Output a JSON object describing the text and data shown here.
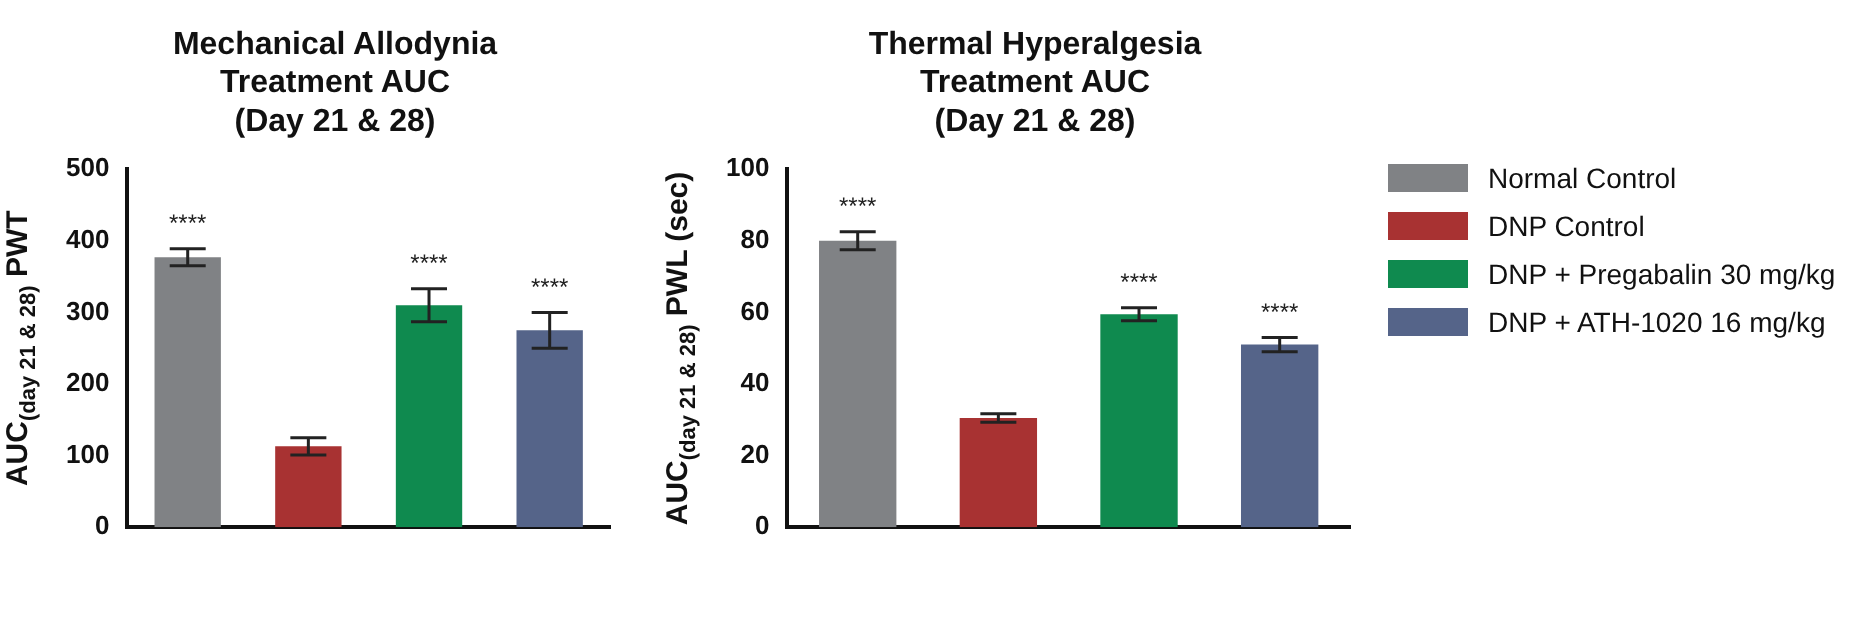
{
  "chart_data": [
    {
      "type": "bar",
      "title": "Mechanical Allodynia\nTreatment AUC\n(Day 21 & 28)",
      "ylabel": "AUC$_{(day 21 & 28)}$ PWT",
      "categories": [
        null
      ],
      "ylim": [
        0,
        500
      ],
      "yticks": [
        0,
        100,
        200,
        300,
        400,
        500
      ],
      "grid": false,
      "legend": false,
      "series": [
        {
          "color": "#808285",
          "values": [
            377
          ],
          "errors": [
            12
          ],
          "value_labels": [
            "****"
          ]
        },
        {
          "color": "#a83232",
          "values": [
            113
          ],
          "errors": [
            12
          ],
          "value_labels": [
            null
          ]
        },
        {
          "color": "#0f8a4f",
          "values": [
            310
          ],
          "errors": [
            23
          ],
          "value_labels": [
            "****"
          ]
        },
        {
          "color": "#556489",
          "values": [
            275
          ],
          "errors": [
            25
          ],
          "value_labels": [
            "****"
          ]
        }
      ]
    },
    {
      "type": "bar",
      "title": "Thermal Hyperalgesia\nTreatment AUC\n(Day 21 & 28)",
      "ylabel": "AUC$_{(day 21 & 28)}$ PWL (sec)",
      "categories": [
        null
      ],
      "ylim": [
        0,
        100
      ],
      "yticks": [
        0,
        20,
        40,
        60,
        80,
        100
      ],
      "grid": false,
      "legend": "right",
      "series": [
        {
          "name": "Normal Control",
          "color": "#808285",
          "values": [
            80
          ],
          "errors": [
            2.5
          ],
          "value_labels": [
            "****"
          ]
        },
        {
          "name": "DNP Control",
          "color": "#a83232",
          "values": [
            30.5
          ],
          "errors": [
            1.2
          ],
          "value_labels": [
            null
          ]
        },
        {
          "name": "DNP + Pregabalin 30 mg/kg",
          "color": "#0f8a4f",
          "values": [
            59.5
          ],
          "errors": [
            1.8
          ],
          "value_labels": [
            "****"
          ]
        },
        {
          "name": "DNP + ATH-1020 16 mg/kg",
          "color": "#556489",
          "values": [
            51
          ],
          "errors": [
            2
          ],
          "value_labels": [
            "****"
          ]
        }
      ]
    }
  ]
}
